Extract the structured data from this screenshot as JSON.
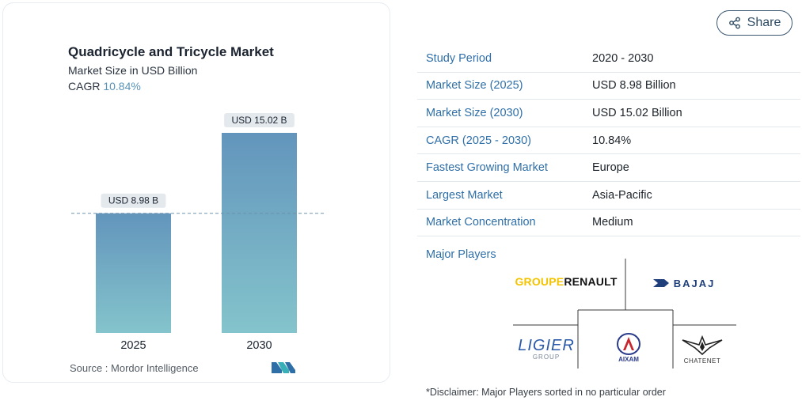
{
  "chart_card": {
    "title": "Quadricycle and Tricycle Market",
    "subtitle": "Market Size in USD Billion",
    "cagr_label": "CAGR",
    "cagr_value": "10.84%",
    "source": "Source :  Mordor Intelligence",
    "source_logo_icon": "mordor-intelligence-logo-icon"
  },
  "chart_data": {
    "type": "bar",
    "categories": [
      "2025",
      "2030"
    ],
    "values": [
      8.98,
      15.02
    ],
    "data_labels": [
      "USD 8.98 B",
      "USD 15.02 B"
    ],
    "title": "Quadricycle and Tricycle Market",
    "subtitle": "Market Size in USD Billion",
    "ylim": [
      0,
      15.02
    ],
    "grid": false,
    "reference_line_at": 8.98,
    "colors": {
      "bar_top": "#6395bc",
      "bar_bottom": "#84c4cc",
      "reference_line": "#6d93ad",
      "label_bg": "#e4e9ee"
    }
  },
  "share": {
    "label": "Share",
    "icon": "share-icon"
  },
  "info_rows": [
    {
      "label": "Study Period",
      "value": "2020 - 2030"
    },
    {
      "label": "Market Size (2025)",
      "value": "USD 8.98 Billion"
    },
    {
      "label": "Market Size (2030)",
      "value": "USD 15.02 Billion"
    },
    {
      "label": "CAGR (2025 - 2030)",
      "value": "10.84%"
    },
    {
      "label": "Fastest Growing Market",
      "value": "Europe"
    },
    {
      "label": "Largest Market",
      "value": "Asia-Pacific"
    },
    {
      "label": "Market Concentration",
      "value": "Medium"
    }
  ],
  "major_players": {
    "label": "Major Players",
    "logos": {
      "renault_part1": "GROUPE ",
      "renault_part2": "RENAULT",
      "bajaj": "BAJAJ",
      "ligier": "LIGIER",
      "ligier_sub": "GROUP",
      "aixam": "AIXAM",
      "chatenet": "CHATENET"
    }
  },
  "disclaimer": "*Disclaimer: Major Players sorted in no particular order",
  "colors": {
    "accent": "#2f6fa8",
    "cagr": "#5a93b8",
    "border": "#e3e8ec"
  }
}
